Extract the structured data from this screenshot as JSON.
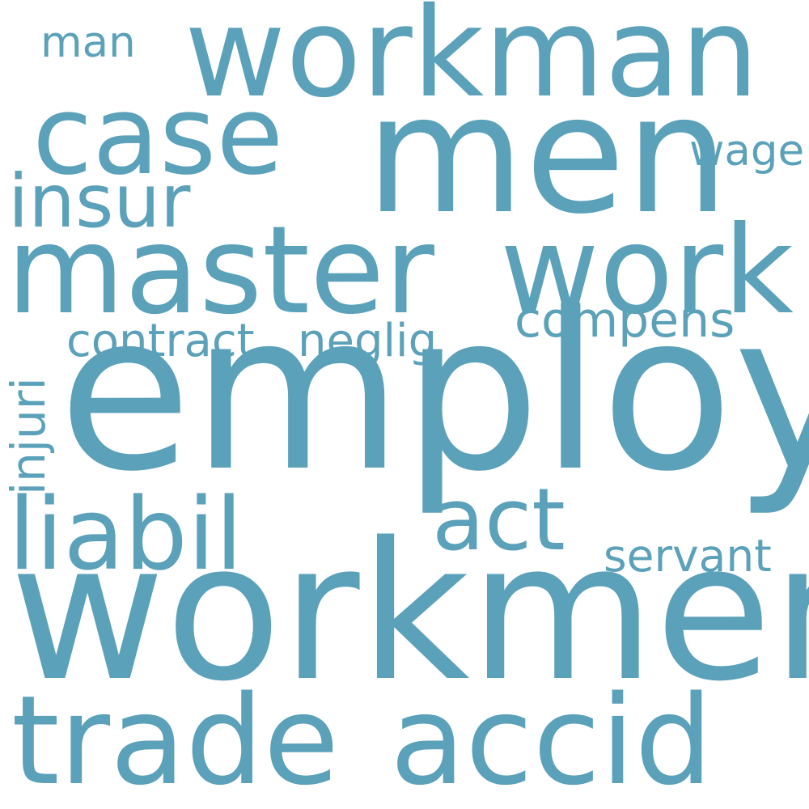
{
  "color": "#5ba1b9",
  "background": "#ffffff",
  "words": {
    "employ": "employ",
    "workmen": "workmen",
    "men": "men",
    "workman": "workman",
    "master": "master",
    "work": "work",
    "trade": "trade",
    "accid": "accid",
    "case": "case",
    "liabil": "liabil",
    "act": "act",
    "insur": "insur",
    "compens": "compens",
    "contract": "contract",
    "neglig": "neglig",
    "servant": "servant",
    "wage": "wage",
    "man": "man",
    "injuri": "injuri"
  }
}
